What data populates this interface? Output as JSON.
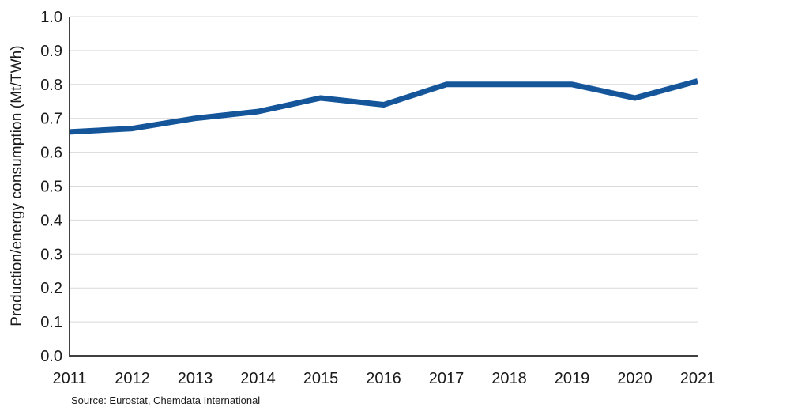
{
  "chart_data": {
    "type": "line",
    "categories": [
      "2011",
      "2012",
      "2013",
      "2014",
      "2015",
      "2016",
      "2017",
      "2018",
      "2019",
      "2020",
      "2021"
    ],
    "values": [
      0.66,
      0.67,
      0.7,
      0.72,
      0.76,
      0.74,
      0.8,
      0.8,
      0.8,
      0.76,
      0.81
    ],
    "title": "",
    "xlabel": "",
    "ylabel": "Production/energy consumption (Mt/TWh)",
    "ylim": [
      0.0,
      1.0
    ],
    "ytick_step": 0.1,
    "ytick_decimals": 1,
    "grid": "horizontal-major",
    "legend": "none",
    "source_note": "Source: Eurostat, Chemdata International",
    "colors": {
      "line": "#15569B",
      "gridline": "#D9D9D9",
      "axis": "#404040",
      "tick_text": "#1A1A1A"
    }
  }
}
